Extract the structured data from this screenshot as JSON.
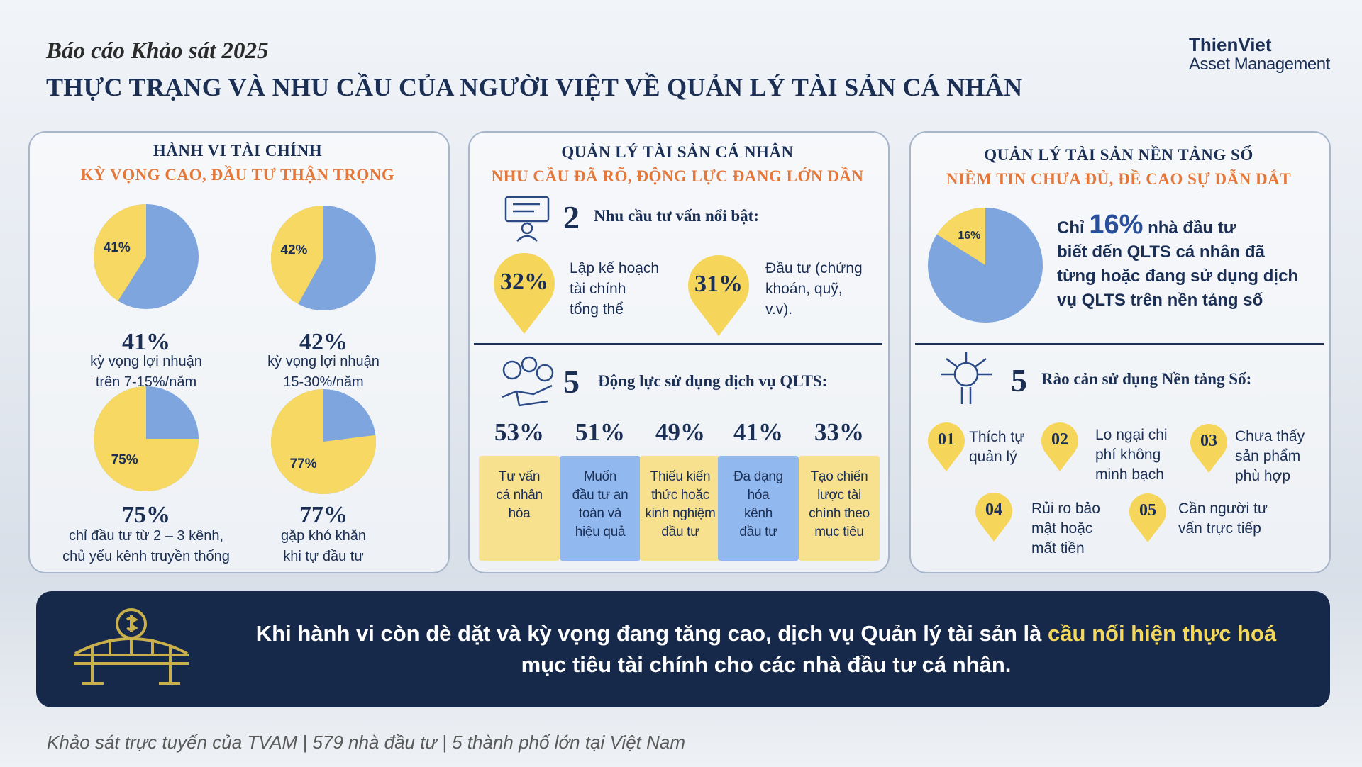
{
  "header": {
    "subtitle": "Báo cáo Khảo sát 2025",
    "title": "THỰC TRẠNG VÀ NHU CẦU CỦA NGƯỜI VIỆT VỀ QUẢN LÝ TÀI SẢN CÁ NHÂN",
    "brand_name": "ThienViet",
    "brand_line": "Asset Management"
  },
  "pie_colors": {
    "value": "#f6d862",
    "rest": "#7ea5dd"
  },
  "panels": [
    {
      "title": "HÀNH VI TÀI CHÍNH",
      "subtitle": "KỲ VỌNG CAO, ĐẦU TƯ THẬN TRỌNG",
      "pies": [
        {
          "value": 41,
          "value_label": "41%",
          "caption": "kỳ vọng  lợi nhuận\ntrên 7-15%/năm"
        },
        {
          "value": 42,
          "value_label": "42%",
          "caption": "kỳ vọng lợi nhuận\n15-30%/năm"
        },
        {
          "value": 75,
          "value_label": "75%",
          "caption": "chỉ đầu tư từ 2 – 3 kênh,\nchủ yếu kênh truyền thống"
        },
        {
          "value": 77,
          "value_label": "77%",
          "caption": "gặp khó khăn\nkhi tự đầu tư"
        }
      ]
    },
    {
      "title": "QUẢN LÝ TÀI SẢN CÁ NHÂN",
      "subtitle": "NHU CẦU ĐÃ RÕ, ĐỘNG LỰC ĐANG LỚN DẦN",
      "needs": {
        "count": 2,
        "heading": "Nhu cầu tư vấn nổi bật:",
        "items": [
          {
            "value": 32,
            "value_label": "32%",
            "text": "Lập kế hoạch\ntài chính\ntổng thể"
          },
          {
            "value": 31,
            "value_label": "31%",
            "text": "Đầu tư (chứng\nkhoán, quỹ,\nv.v)."
          }
        ]
      },
      "drivers": {
        "count": 5,
        "heading": "Động lực sử dụng dịch vụ QLTS:",
        "items": [
          {
            "value": 53,
            "value_label": "53%",
            "text": "Tư vấn\ncá nhân\nhóa",
            "color": "#f7e08e"
          },
          {
            "value": 51,
            "value_label": "51%",
            "text": "Muốn\nđầu tư an\ntoàn và\nhiệu quả",
            "color": "#91b8ef"
          },
          {
            "value": 49,
            "value_label": "49%",
            "text": "Thiếu kiến\nthức hoặc\nkinh nghiệm\nđầu tư",
            "color": "#f7e08e"
          },
          {
            "value": 41,
            "value_label": "41%",
            "text": "Đa dạng\nhóa\nkênh\nđầu tư",
            "color": "#91b8ef"
          },
          {
            "value": 33,
            "value_label": "33%",
            "text": "Tạo chiến\nlược tài\nchính theo\nmục tiêu",
            "color": "#f7e08e"
          }
        ]
      }
    },
    {
      "title": "QUẢN LÝ TÀI SẢN NỀN TẢNG SỐ",
      "subtitle": "NIỀM TIN CHƯA ĐỦ, ĐỀ CAO SỰ DẪN DẮT",
      "pie": {
        "value": 16,
        "value_label": "16%"
      },
      "statement_start": "Chỉ",
      "statement_end": "nhà đầu tư\nbiết đến QLTS cá nhân đã\ntừng hoặc đang sử dụng dịch\nvụ QLTS trên nền tảng số",
      "barriers": {
        "count": 5,
        "heading": "Rào cản sử dụng Nền tảng Số:",
        "items": [
          {
            "num": "01",
            "text": "Thích tự\nquản lý"
          },
          {
            "num": "02",
            "text": "Lo ngại chi\nphí không\nminh bạch"
          },
          {
            "num": "03",
            "text": "Chưa thấy\nsản phẩm\nphù hợp"
          },
          {
            "num": "04",
            "text": "Rủi ro bảo\nmật hoặc\nmất tiền"
          },
          {
            "num": "05",
            "text": "Cần người tư\nvấn trực tiếp"
          }
        ]
      }
    }
  ],
  "banner": {
    "text_start": "Khi hành vi còn dè dặt và kỳ vọng đang tăng cao, dịch vụ Quản lý tài sản là",
    "highlight": "cầu nối hiện thực hoá",
    "text_end": "mục tiêu tài chính cho các nhà đầu tư cá nhân."
  },
  "footer": "Khảo sát trực tuyến của TVAM | 579 nhà đầu tư | 5 thành phố lớn tại Việt Nam"
}
